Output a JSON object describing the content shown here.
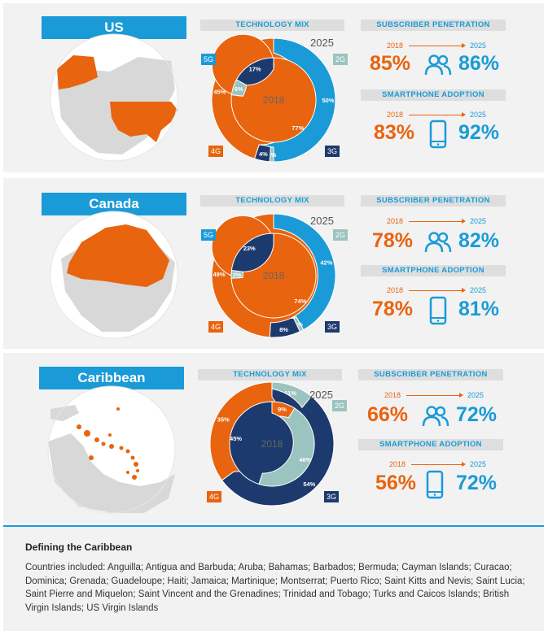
{
  "colors": {
    "c5g": "#1a9bd7",
    "c4g": "#e8640e",
    "c3g": "#1d3a6e",
    "c2g": "#9bc3c0",
    "orange": "#e8640e",
    "blue": "#1a9bd7"
  },
  "labels": {
    "tech_mix": "TECHNOLOGY MIX",
    "sub_pen": "SUBSCRIBER PENETRATION",
    "smart_adopt": "SMARTPHONE ADOPTION",
    "y2018": "2018",
    "y2025": "2025",
    "g5": "5G",
    "g4": "4G",
    "g3": "3G",
    "g2": "2G"
  },
  "regions": [
    {
      "name": "US",
      "sub_2018": "85%",
      "sub_2025": "86%",
      "smart_2018": "83%",
      "smart_2025": "92%"
    },
    {
      "name": "Canada",
      "sub_2018": "78%",
      "sub_2025": "82%",
      "smart_2018": "78%",
      "smart_2025": "81%"
    },
    {
      "name": "Caribbean",
      "sub_2018": "66%",
      "sub_2025": "72%",
      "smart_2018": "56%",
      "smart_2025": "72%"
    }
  ],
  "chart_data": [
    {
      "type": "pie",
      "region": "US",
      "outer_2025": [
        {
          "name": "5G",
          "value": 50,
          "label": "50%"
        },
        {
          "name": "2G",
          "value": 1,
          "label": "1%"
        },
        {
          "name": "3G",
          "value": 4,
          "label": "4%"
        },
        {
          "name": "4G",
          "value": 45,
          "label": "45%"
        }
      ],
      "inner_2018": [
        {
          "name": "4G",
          "value": 77,
          "label": "77%"
        },
        {
          "name": "2G",
          "value": 6,
          "label": "6%"
        },
        {
          "name": "3G",
          "value": 17,
          "label": "17%"
        }
      ]
    },
    {
      "type": "pie",
      "region": "Canada",
      "outer_2025": [
        {
          "name": "5G",
          "value": 42,
          "label": "42%"
        },
        {
          "name": "2G",
          "value": 1,
          "label": "1%"
        },
        {
          "name": "3G",
          "value": 8,
          "label": "8%"
        },
        {
          "name": "4G",
          "value": 49,
          "label": "49%"
        }
      ],
      "inner_2018": [
        {
          "name": "4G",
          "value": 74,
          "label": "74%"
        },
        {
          "name": "2G",
          "value": 3,
          "label": "3%"
        },
        {
          "name": "3G",
          "value": 23,
          "label": "23%"
        }
      ]
    },
    {
      "type": "pie",
      "region": "Caribbean",
      "outer_2025": [
        {
          "name": "2G",
          "value": 11,
          "label": "11%"
        },
        {
          "name": "3G",
          "value": 54,
          "label": "54%"
        },
        {
          "name": "4G",
          "value": 35,
          "label": "35%"
        }
      ],
      "inner_2018": [
        {
          "name": "4G",
          "value": 9,
          "label": "9%"
        },
        {
          "name": "2G",
          "value": 46,
          "label": "46%"
        },
        {
          "name": "3G",
          "value": 45,
          "label": "45%"
        }
      ]
    }
  ],
  "footer": {
    "title": "Defining the Caribbean",
    "text": "Countries included: Anguilla; Antigua and Barbuda; Aruba; Bahamas; Barbados; Bermuda; Cayman Islands; Curacao; Dominica; Grenada; Guadeloupe; Haiti; Jamaica; Martinique; Montserrat; Puerto Rico; Saint Kitts and Nevis; Saint Lucia; Saint Pierre and Miquelon; Saint Vincent and the Grenadines; Trinidad and Tobago; Turks and Caicos Islands; British Virgin Islands; US Virgin Islands"
  }
}
